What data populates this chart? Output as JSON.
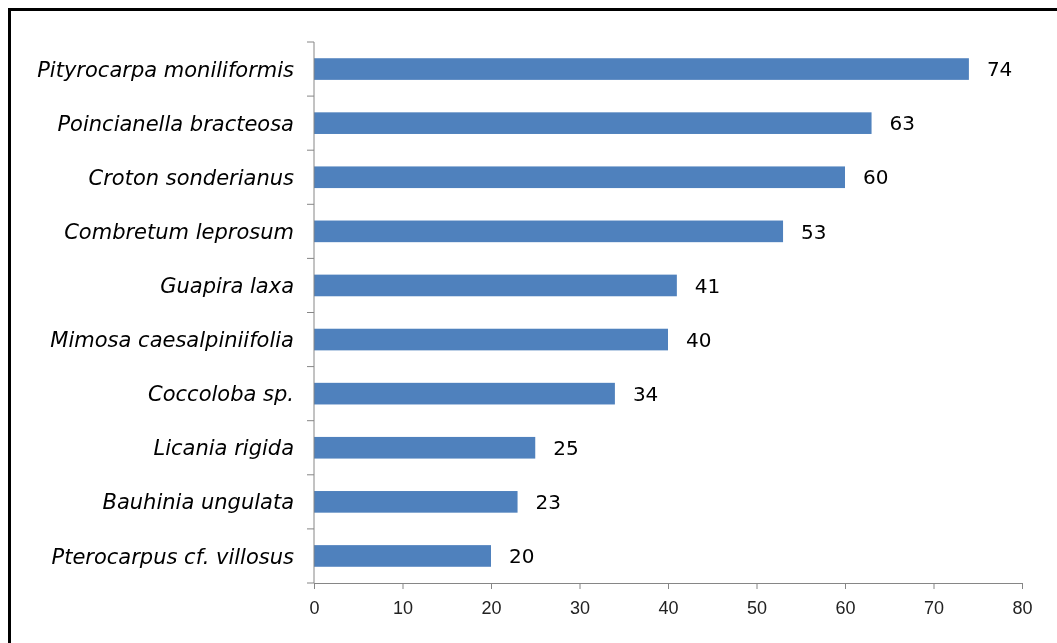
{
  "chart_data": {
    "type": "bar",
    "orientation": "horizontal",
    "categories": [
      "Pityrocarpa moniliformis",
      "Poincianella bracteosa",
      "Croton sonderianus",
      "Combretum leprosum",
      "Guapira laxa",
      "Mimosa caesalpiniifolia",
      "Coccoloba sp.",
      "Licania rigida",
      "Bauhinia ungulata",
      "Pterocarpus cf. villosus"
    ],
    "values": [
      74,
      63,
      60,
      53,
      41,
      40,
      34,
      25,
      23,
      20
    ],
    "color": "#4f81bd",
    "xlim": [
      0,
      80
    ],
    "xticks": [
      0,
      10,
      20,
      30,
      40,
      50,
      60,
      70,
      80
    ],
    "data_labels": true
  }
}
